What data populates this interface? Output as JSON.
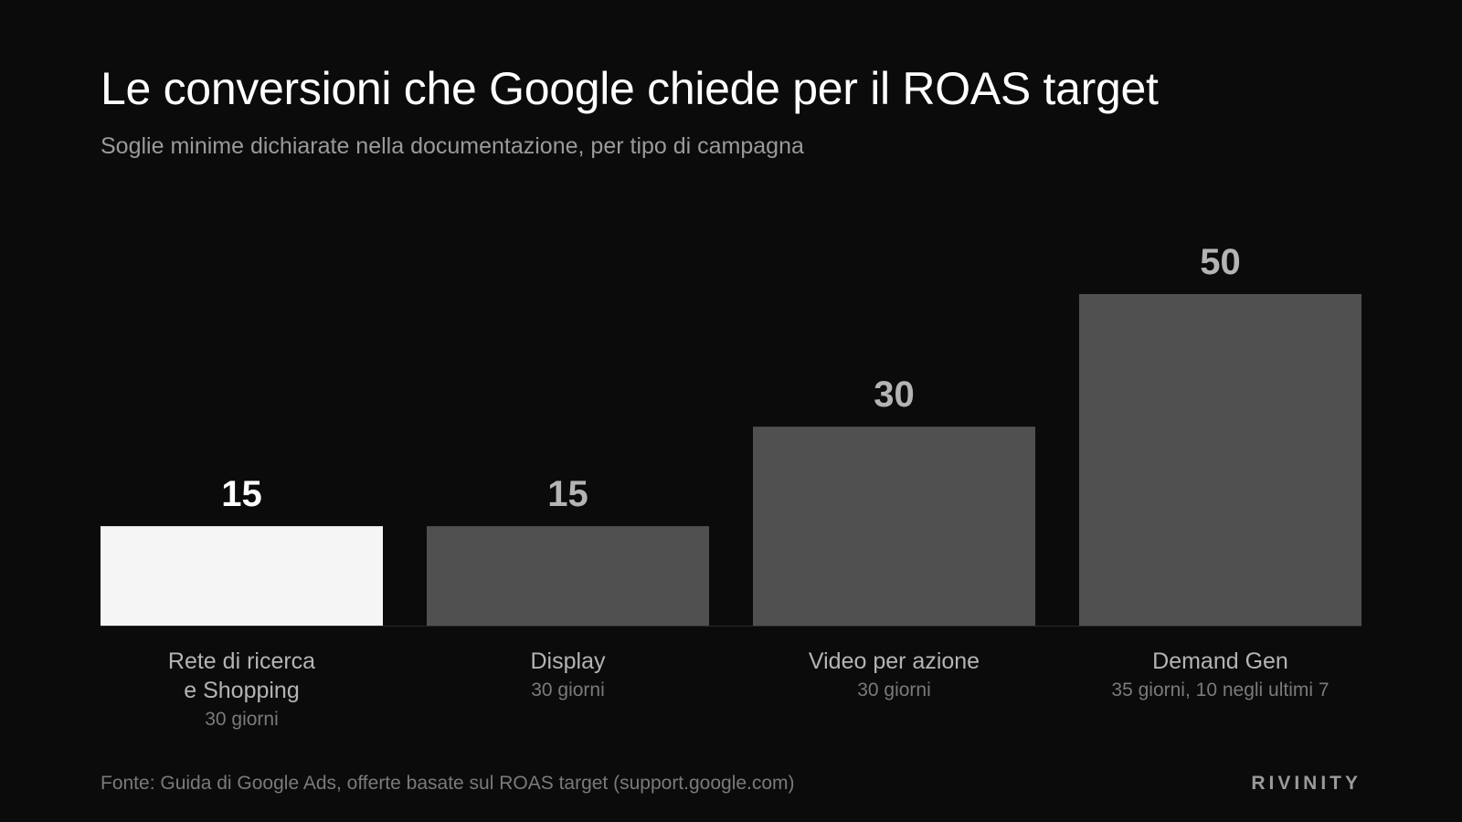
{
  "colors": {
    "background": "#0b0b0b",
    "highlight_bar": "#f5f5f5",
    "default_bar": "#505050",
    "highlight_value": "#ffffff",
    "default_value": "#b4b4b4"
  },
  "chart_data": {
    "type": "bar",
    "title": "Le conversioni che Google chiede per il ROAS target",
    "subtitle": "Soglie minime dichiarate nella documentazione, per tipo di campagna",
    "categories": [
      {
        "label_lines": [
          "Rete di ricerca",
          "e Shopping"
        ],
        "sublabel": "30 giorni",
        "value": 15,
        "highlight": true
      },
      {
        "label_lines": [
          "Display"
        ],
        "sublabel": "30 giorni",
        "value": 15,
        "highlight": false
      },
      {
        "label_lines": [
          "Video per azione"
        ],
        "sublabel": "30 giorni",
        "value": 30,
        "highlight": false
      },
      {
        "label_lines": [
          "Demand Gen"
        ],
        "sublabel": "35 giorni, 10 negli ultimi 7",
        "value": 50,
        "highlight": false
      }
    ],
    "ylim": [
      0,
      50
    ],
    "grid": false,
    "legend": "none"
  },
  "footer": {
    "source": "Fonte: Guida di Google Ads, offerte basate sul ROAS target (support.google.com)",
    "brand": "RIVINITY"
  }
}
